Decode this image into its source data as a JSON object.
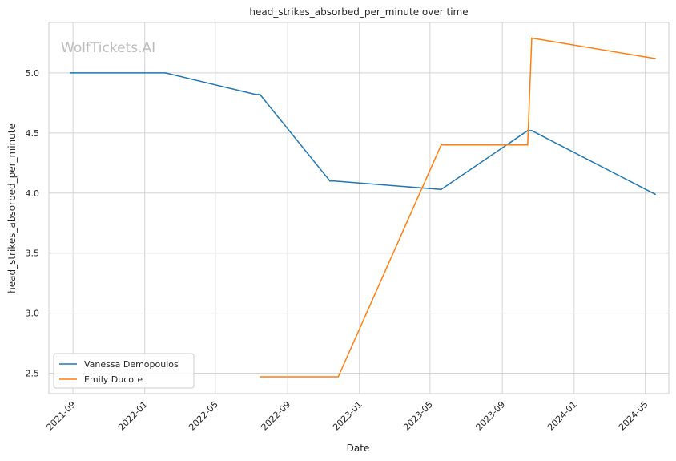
{
  "chart_data": {
    "type": "line",
    "title": "head_strikes_absorbed_per_minute over time",
    "xlabel": "Date",
    "ylabel": "head_strikes_absorbed_per_minute",
    "watermark": "WolfTickets.AI",
    "xlim": [
      "2021-07-22",
      "2024-06-10"
    ],
    "ylim": [
      2.33,
      5.42
    ],
    "x_ticks": [
      "2021-09",
      "2022-01",
      "2022-05",
      "2022-09",
      "2023-01",
      "2023-05",
      "2023-09",
      "2024-01",
      "2024-05"
    ],
    "y_ticks": [
      "2.5",
      "3.0",
      "3.5",
      "4.0",
      "4.5",
      "5.0"
    ],
    "grid": true,
    "legend_position": "lower-left",
    "series": [
      {
        "name": "Vanessa Demopoulos",
        "color": "#1f77b4",
        "points": [
          {
            "x": "2021-08-28",
            "y": 5.0
          },
          {
            "x": "2022-02-05",
            "y": 5.0
          },
          {
            "x": "2022-07-09",
            "y": 4.82
          },
          {
            "x": "2022-07-16",
            "y": 4.82
          },
          {
            "x": "2022-11-12",
            "y": 4.1
          },
          {
            "x": "2022-11-19",
            "y": 4.1
          },
          {
            "x": "2023-05-20",
            "y": 4.03
          },
          {
            "x": "2023-10-14",
            "y": 4.52
          },
          {
            "x": "2023-10-21",
            "y": 4.52
          },
          {
            "x": "2024-05-18",
            "y": 3.99
          }
        ]
      },
      {
        "name": "Emily Ducote",
        "color": "#ff7f0e",
        "points": [
          {
            "x": "2022-07-16",
            "y": 2.47
          },
          {
            "x": "2022-11-26",
            "y": 2.47
          },
          {
            "x": "2023-05-20",
            "y": 4.4
          },
          {
            "x": "2023-10-14",
            "y": 4.4
          },
          {
            "x": "2023-10-21",
            "y": 5.29
          },
          {
            "x": "2024-05-18",
            "y": 5.12
          }
        ]
      }
    ]
  }
}
